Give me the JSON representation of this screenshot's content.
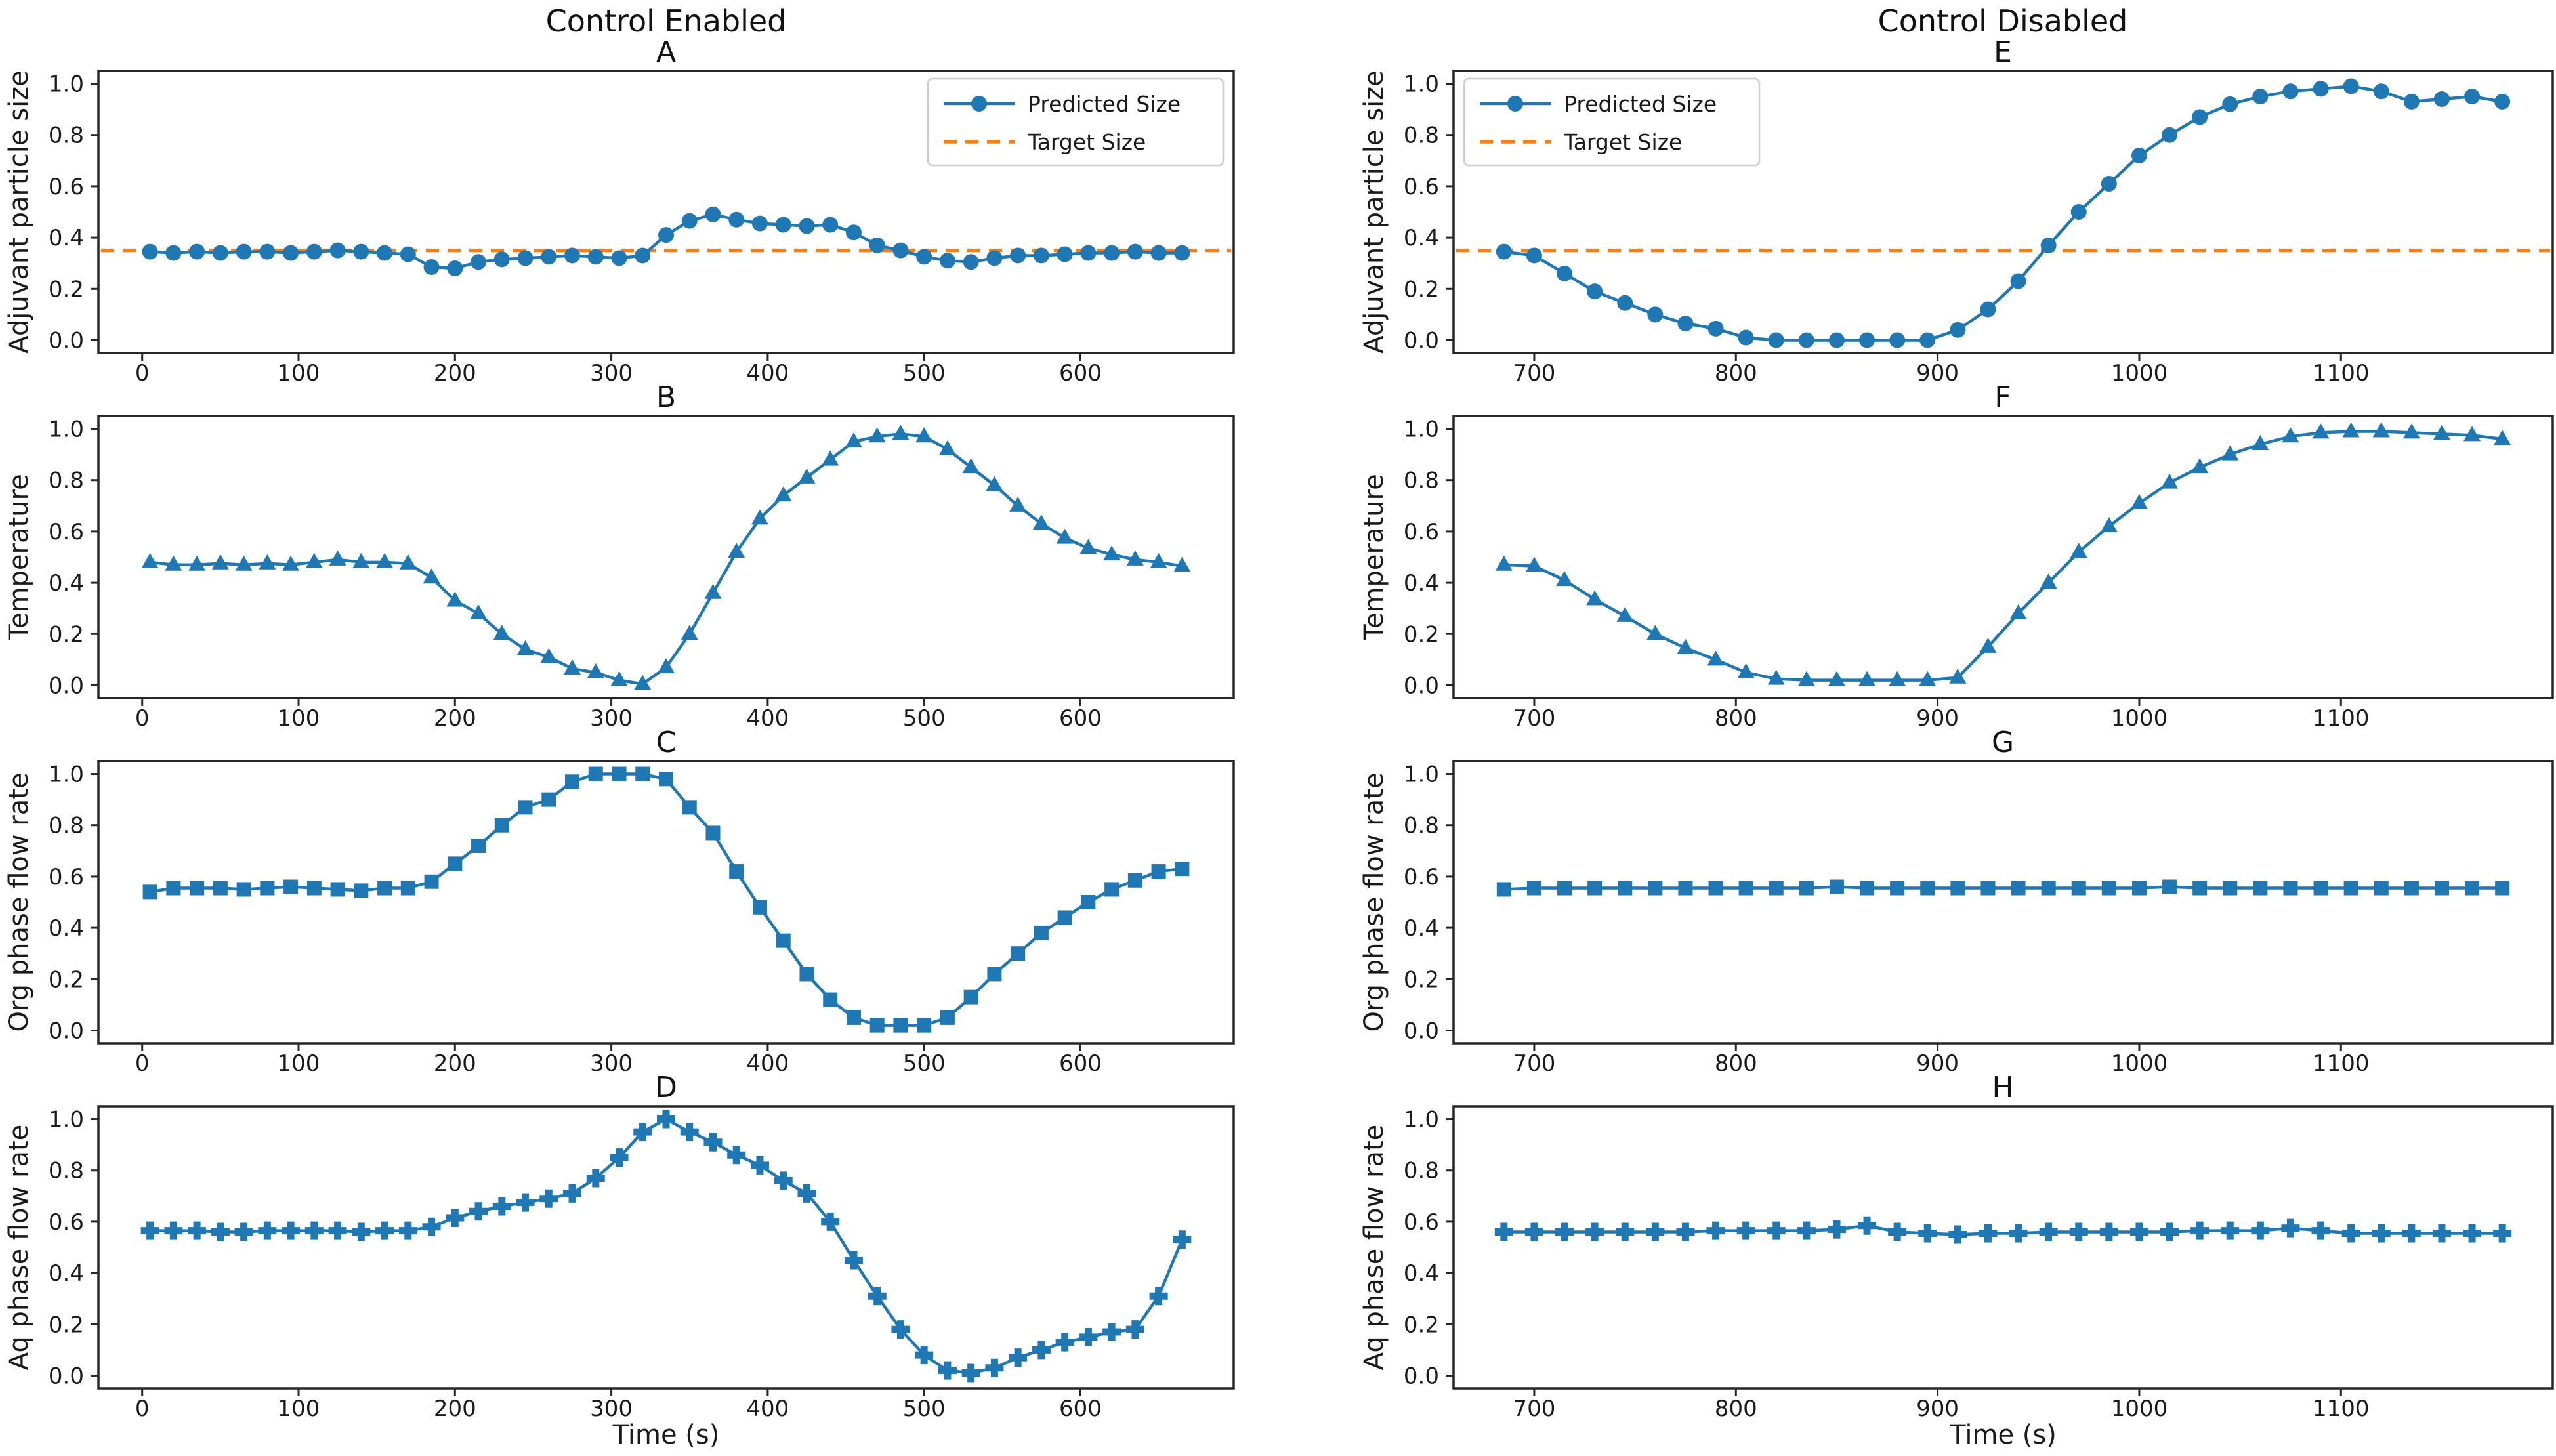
{
  "columns": [
    {
      "title": "Control Enabled"
    },
    {
      "title": "Control Disabled"
    }
  ],
  "legend": {
    "predicted_label": "Predicted Size",
    "target_label": "Target Size"
  },
  "colors": {
    "series_blue": "#1f77b4",
    "target_orange": "#ff7f0e",
    "spine": "#262626",
    "text": "#1a1a1a",
    "legend_border": "#cccccc"
  },
  "chart_data": [
    {
      "id": "A",
      "type": "line",
      "column": 0,
      "title": "A",
      "ylabel": "Adjuvant particle size",
      "xlabel": "",
      "marker": "circle",
      "legend": true,
      "legend_pos": "right",
      "target": 0.35,
      "x_start": 5,
      "x_step": 15,
      "xlim": [
        -28,
        698
      ],
      "ylim": [
        -0.05,
        1.05
      ],
      "xticks": [
        0,
        100,
        200,
        300,
        400,
        500,
        600
      ],
      "yticks": [
        0.0,
        0.2,
        0.4,
        0.6,
        0.8,
        1.0
      ],
      "values": [
        0.345,
        0.34,
        0.345,
        0.34,
        0.345,
        0.345,
        0.34,
        0.345,
        0.35,
        0.345,
        0.34,
        0.335,
        0.285,
        0.28,
        0.305,
        0.315,
        0.32,
        0.325,
        0.33,
        0.325,
        0.32,
        0.33,
        0.41,
        0.465,
        0.49,
        0.47,
        0.455,
        0.45,
        0.445,
        0.45,
        0.42,
        0.37,
        0.35,
        0.325,
        0.31,
        0.305,
        0.32,
        0.33,
        0.33,
        0.335,
        0.34,
        0.34,
        0.345,
        0.34,
        0.34
      ]
    },
    {
      "id": "B",
      "type": "line",
      "column": 0,
      "title": "B",
      "ylabel": "Temperature",
      "xlabel": "",
      "marker": "triangle",
      "legend": false,
      "legend_pos": "",
      "target": null,
      "x_start": 5,
      "x_step": 15,
      "xlim": [
        -28,
        698
      ],
      "ylim": [
        -0.05,
        1.05
      ],
      "xticks": [
        0,
        100,
        200,
        300,
        400,
        500,
        600
      ],
      "yticks": [
        0.0,
        0.2,
        0.4,
        0.6,
        0.8,
        1.0
      ],
      "values": [
        0.48,
        0.47,
        0.47,
        0.475,
        0.47,
        0.475,
        0.47,
        0.48,
        0.49,
        0.48,
        0.48,
        0.475,
        0.42,
        0.33,
        0.28,
        0.2,
        0.14,
        0.11,
        0.065,
        0.05,
        0.02,
        0.005,
        0.07,
        0.2,
        0.36,
        0.52,
        0.65,
        0.74,
        0.81,
        0.88,
        0.95,
        0.97,
        0.98,
        0.97,
        0.92,
        0.85,
        0.78,
        0.7,
        0.63,
        0.575,
        0.535,
        0.51,
        0.49,
        0.48,
        0.465
      ]
    },
    {
      "id": "C",
      "type": "line",
      "column": 0,
      "title": "C",
      "ylabel": "Org phase flow rate",
      "xlabel": "",
      "marker": "square",
      "legend": false,
      "legend_pos": "",
      "target": null,
      "x_start": 5,
      "x_step": 15,
      "xlim": [
        -28,
        698
      ],
      "ylim": [
        -0.05,
        1.05
      ],
      "xticks": [
        0,
        100,
        200,
        300,
        400,
        500,
        600
      ],
      "yticks": [
        0.0,
        0.2,
        0.4,
        0.6,
        0.8,
        1.0
      ],
      "values": [
        0.54,
        0.555,
        0.555,
        0.555,
        0.55,
        0.555,
        0.56,
        0.555,
        0.55,
        0.545,
        0.555,
        0.555,
        0.58,
        0.65,
        0.72,
        0.8,
        0.87,
        0.9,
        0.97,
        1.0,
        1.0,
        1.0,
        0.98,
        0.87,
        0.77,
        0.62,
        0.48,
        0.35,
        0.22,
        0.12,
        0.05,
        0.02,
        0.02,
        0.02,
        0.05,
        0.13,
        0.22,
        0.3,
        0.38,
        0.44,
        0.5,
        0.55,
        0.585,
        0.62,
        0.63
      ]
    },
    {
      "id": "D",
      "type": "line",
      "column": 0,
      "title": "D",
      "ylabel": "Aq phase flow rate",
      "xlabel": "Time (s)",
      "marker": "plus",
      "legend": false,
      "legend_pos": "",
      "target": null,
      "x_start": 5,
      "x_step": 15,
      "xlim": [
        -28,
        698
      ],
      "ylim": [
        -0.05,
        1.05
      ],
      "xticks": [
        0,
        100,
        200,
        300,
        400,
        500,
        600
      ],
      "yticks": [
        0.0,
        0.2,
        0.4,
        0.6,
        0.8,
        1.0
      ],
      "values": [
        0.565,
        0.565,
        0.565,
        0.56,
        0.56,
        0.565,
        0.565,
        0.565,
        0.565,
        0.56,
        0.565,
        0.565,
        0.58,
        0.615,
        0.64,
        0.66,
        0.675,
        0.69,
        0.71,
        0.77,
        0.85,
        0.95,
        1.0,
        0.95,
        0.91,
        0.86,
        0.82,
        0.76,
        0.71,
        0.6,
        0.45,
        0.31,
        0.18,
        0.08,
        0.02,
        0.01,
        0.03,
        0.07,
        0.1,
        0.13,
        0.15,
        0.17,
        0.18,
        0.31,
        0.53
      ]
    },
    {
      "id": "E",
      "type": "line",
      "column": 1,
      "title": "E",
      "ylabel": "Adjuvant particle size",
      "xlabel": "",
      "marker": "circle",
      "legend": true,
      "legend_pos": "left",
      "target": 0.35,
      "x_start": 685,
      "x_step": 15,
      "xlim": [
        660,
        1205
      ],
      "ylim": [
        -0.05,
        1.05
      ],
      "xticks": [
        700,
        800,
        900,
        1000,
        1100
      ],
      "yticks": [
        0.0,
        0.2,
        0.4,
        0.6,
        0.8,
        1.0
      ],
      "values": [
        0.345,
        0.33,
        0.26,
        0.19,
        0.145,
        0.1,
        0.065,
        0.045,
        0.01,
        0.0,
        0.0,
        0.0,
        0.0,
        0.0,
        0.0,
        0.04,
        0.12,
        0.23,
        0.37,
        0.5,
        0.61,
        0.72,
        0.8,
        0.87,
        0.92,
        0.95,
        0.97,
        0.98,
        0.99,
        0.97,
        0.93,
        0.94,
        0.95,
        0.93
      ]
    },
    {
      "id": "F",
      "type": "line",
      "column": 1,
      "title": "F",
      "ylabel": "Temperature",
      "xlabel": "",
      "marker": "triangle",
      "legend": false,
      "legend_pos": "",
      "target": null,
      "x_start": 685,
      "x_step": 15,
      "xlim": [
        660,
        1205
      ],
      "ylim": [
        -0.05,
        1.05
      ],
      "xticks": [
        700,
        800,
        900,
        1000,
        1100
      ],
      "yticks": [
        0.0,
        0.2,
        0.4,
        0.6,
        0.8,
        1.0
      ],
      "values": [
        0.47,
        0.465,
        0.41,
        0.335,
        0.27,
        0.2,
        0.145,
        0.1,
        0.05,
        0.025,
        0.02,
        0.02,
        0.02,
        0.02,
        0.02,
        0.03,
        0.15,
        0.28,
        0.4,
        0.52,
        0.62,
        0.71,
        0.79,
        0.85,
        0.9,
        0.94,
        0.97,
        0.985,
        0.99,
        0.99,
        0.985,
        0.98,
        0.975,
        0.96
      ]
    },
    {
      "id": "G",
      "type": "line",
      "column": 1,
      "title": "G",
      "ylabel": "Org phase flow rate",
      "xlabel": "",
      "marker": "square",
      "legend": false,
      "legend_pos": "",
      "target": null,
      "x_start": 685,
      "x_step": 15,
      "xlim": [
        660,
        1205
      ],
      "ylim": [
        -0.05,
        1.05
      ],
      "xticks": [
        700,
        800,
        900,
        1000,
        1100
      ],
      "yticks": [
        0.0,
        0.2,
        0.4,
        0.6,
        0.8,
        1.0
      ],
      "values": [
        0.55,
        0.555,
        0.555,
        0.555,
        0.555,
        0.555,
        0.555,
        0.555,
        0.555,
        0.555,
        0.555,
        0.56,
        0.555,
        0.555,
        0.555,
        0.555,
        0.555,
        0.555,
        0.555,
        0.555,
        0.555,
        0.555,
        0.56,
        0.555,
        0.555,
        0.555,
        0.555,
        0.555,
        0.555,
        0.555,
        0.555,
        0.555,
        0.555,
        0.555
      ]
    },
    {
      "id": "H",
      "type": "line",
      "column": 1,
      "title": "H",
      "ylabel": "Aq phase flow rate",
      "xlabel": "Time (s)",
      "marker": "plus",
      "legend": false,
      "legend_pos": "",
      "target": null,
      "x_start": 685,
      "x_step": 15,
      "xlim": [
        660,
        1205
      ],
      "ylim": [
        -0.05,
        1.05
      ],
      "xticks": [
        700,
        800,
        900,
        1000,
        1100
      ],
      "yticks": [
        0.0,
        0.2,
        0.4,
        0.6,
        0.8,
        1.0
      ],
      "values": [
        0.56,
        0.56,
        0.56,
        0.56,
        0.56,
        0.56,
        0.56,
        0.565,
        0.565,
        0.565,
        0.565,
        0.57,
        0.585,
        0.56,
        0.555,
        0.55,
        0.555,
        0.555,
        0.56,
        0.56,
        0.56,
        0.56,
        0.56,
        0.565,
        0.565,
        0.565,
        0.575,
        0.565,
        0.555,
        0.555,
        0.555,
        0.555,
        0.555,
        0.555
      ]
    }
  ]
}
